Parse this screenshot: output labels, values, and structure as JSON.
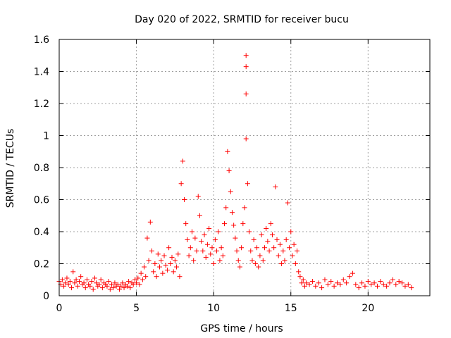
{
  "chart_data": {
    "type": "scatter",
    "title": "Day 020 of 2022, SRMTID for receiver bucu",
    "xlabel": "GPS time / hours",
    "ylabel": "SRMTID / TECUs",
    "xlim": [
      0,
      24
    ],
    "ylim": [
      0,
      1.6
    ],
    "xticks": [
      0,
      5,
      10,
      15,
      20
    ],
    "xtick_labels": [
      "0",
      "5",
      "10",
      "15",
      "20"
    ],
    "yticks": [
      0,
      0.2,
      0.4,
      0.6,
      0.8,
      1,
      1.2,
      1.4,
      1.6
    ],
    "ytick_labels": [
      "0",
      "0.2",
      "0.4",
      "0.6",
      "0.8",
      "1",
      "1.2",
      "1.4",
      "1.6"
    ],
    "grid": true,
    "marker": "+",
    "color": "#ff0000",
    "series": [
      {
        "name": "SRMTID",
        "points": [
          [
            0.0,
            0.09
          ],
          [
            0.1,
            0.07
          ],
          [
            0.2,
            0.1
          ],
          [
            0.3,
            0.06
          ],
          [
            0.4,
            0.08
          ],
          [
            0.5,
            0.11
          ],
          [
            0.6,
            0.07
          ],
          [
            0.7,
            0.09
          ],
          [
            0.8,
            0.05
          ],
          [
            0.9,
            0.15
          ],
          [
            1.0,
            0.08
          ],
          [
            1.1,
            0.1
          ],
          [
            1.2,
            0.06
          ],
          [
            1.3,
            0.09
          ],
          [
            1.4,
            0.12
          ],
          [
            1.5,
            0.07
          ],
          [
            1.6,
            0.08
          ],
          [
            1.7,
            0.05
          ],
          [
            1.8,
            0.1
          ],
          [
            1.9,
            0.07
          ],
          [
            2.0,
            0.06
          ],
          [
            2.1,
            0.09
          ],
          [
            2.2,
            0.04
          ],
          [
            2.3,
            0.11
          ],
          [
            2.4,
            0.08
          ],
          [
            2.5,
            0.06
          ],
          [
            2.6,
            0.07
          ],
          [
            2.7,
            0.1
          ],
          [
            2.8,
            0.05
          ],
          [
            2.9,
            0.08
          ],
          [
            3.0,
            0.07
          ],
          [
            3.1,
            0.06
          ],
          [
            3.2,
            0.09
          ],
          [
            3.3,
            0.04
          ],
          [
            3.4,
            0.07
          ],
          [
            3.5,
            0.05
          ],
          [
            3.6,
            0.08
          ],
          [
            3.7,
            0.06
          ],
          [
            3.8,
            0.07
          ],
          [
            3.9,
            0.04
          ],
          [
            4.0,
            0.06
          ],
          [
            4.1,
            0.08
          ],
          [
            4.2,
            0.05
          ],
          [
            4.3,
            0.07
          ],
          [
            4.4,
            0.06
          ],
          [
            4.5,
            0.09
          ],
          [
            4.6,
            0.05
          ],
          [
            4.7,
            0.08
          ],
          [
            4.8,
            0.07
          ],
          [
            4.9,
            0.1
          ],
          [
            5.0,
            0.08
          ],
          [
            5.1,
            0.11
          ],
          [
            5.2,
            0.07
          ],
          [
            5.3,
            0.14
          ],
          [
            5.4,
            0.1
          ],
          [
            5.5,
            0.18
          ],
          [
            5.6,
            0.12
          ],
          [
            5.7,
            0.36
          ],
          [
            5.8,
            0.22
          ],
          [
            5.9,
            0.46
          ],
          [
            6.0,
            0.28
          ],
          [
            6.1,
            0.15
          ],
          [
            6.2,
            0.2
          ],
          [
            6.3,
            0.12
          ],
          [
            6.4,
            0.26
          ],
          [
            6.5,
            0.18
          ],
          [
            6.6,
            0.22
          ],
          [
            6.7,
            0.14
          ],
          [
            6.8,
            0.25
          ],
          [
            6.9,
            0.19
          ],
          [
            7.0,
            0.16
          ],
          [
            7.1,
            0.3
          ],
          [
            7.2,
            0.2
          ],
          [
            7.3,
            0.24
          ],
          [
            7.4,
            0.15
          ],
          [
            7.5,
            0.22
          ],
          [
            7.6,
            0.18
          ],
          [
            7.7,
            0.26
          ],
          [
            7.8,
            0.12
          ],
          [
            7.9,
            0.7
          ],
          [
            8.0,
            0.84
          ],
          [
            8.1,
            0.6
          ],
          [
            8.2,
            0.45
          ],
          [
            8.3,
            0.35
          ],
          [
            8.4,
            0.25
          ],
          [
            8.5,
            0.3
          ],
          [
            8.6,
            0.4
          ],
          [
            8.7,
            0.22
          ],
          [
            8.8,
            0.36
          ],
          [
            8.9,
            0.28
          ],
          [
            9.0,
            0.62
          ],
          [
            9.1,
            0.5
          ],
          [
            9.2,
            0.34
          ],
          [
            9.3,
            0.28
          ],
          [
            9.4,
            0.38
          ],
          [
            9.5,
            0.24
          ],
          [
            9.6,
            0.32
          ],
          [
            9.7,
            0.42
          ],
          [
            9.8,
            0.26
          ],
          [
            9.9,
            0.3
          ],
          [
            10.0,
            0.2
          ],
          [
            10.1,
            0.35
          ],
          [
            10.2,
            0.28
          ],
          [
            10.3,
            0.4
          ],
          [
            10.4,
            0.22
          ],
          [
            10.5,
            0.3
          ],
          [
            10.6,
            0.25
          ],
          [
            10.7,
            0.45
          ],
          [
            10.8,
            0.55
          ],
          [
            10.9,
            0.9
          ],
          [
            11.0,
            0.78
          ],
          [
            11.1,
            0.65
          ],
          [
            11.2,
            0.52
          ],
          [
            11.3,
            0.44
          ],
          [
            11.4,
            0.36
          ],
          [
            11.5,
            0.28
          ],
          [
            11.6,
            0.22
          ],
          [
            11.7,
            0.18
          ],
          [
            11.8,
            0.3
          ],
          [
            11.9,
            0.45
          ],
          [
            12.0,
            0.55
          ],
          [
            12.1,
            1.5
          ],
          [
            12.1,
            1.43
          ],
          [
            12.1,
            1.26
          ],
          [
            12.1,
            0.98
          ],
          [
            12.2,
            0.7
          ],
          [
            12.3,
            0.4
          ],
          [
            12.4,
            0.28
          ],
          [
            12.5,
            0.22
          ],
          [
            12.6,
            0.35
          ],
          [
            12.7,
            0.2
          ],
          [
            12.8,
            0.3
          ],
          [
            12.9,
            0.18
          ],
          [
            13.0,
            0.25
          ],
          [
            13.1,
            0.38
          ],
          [
            13.2,
            0.22
          ],
          [
            13.3,
            0.3
          ],
          [
            13.4,
            0.42
          ],
          [
            13.5,
            0.34
          ],
          [
            13.6,
            0.28
          ],
          [
            13.7,
            0.45
          ],
          [
            13.8,
            0.38
          ],
          [
            13.9,
            0.3
          ],
          [
            14.0,
            0.68
          ],
          [
            14.1,
            0.35
          ],
          [
            14.2,
            0.25
          ],
          [
            14.3,
            0.32
          ],
          [
            14.4,
            0.2
          ],
          [
            14.5,
            0.28
          ],
          [
            14.6,
            0.22
          ],
          [
            14.7,
            0.35
          ],
          [
            14.8,
            0.58
          ],
          [
            14.9,
            0.3
          ],
          [
            15.0,
            0.4
          ],
          [
            15.1,
            0.25
          ],
          [
            15.2,
            0.32
          ],
          [
            15.3,
            0.2
          ],
          [
            15.4,
            0.28
          ],
          [
            15.5,
            0.15
          ],
          [
            15.6,
            0.12
          ],
          [
            15.7,
            0.08
          ],
          [
            15.8,
            0.1
          ],
          [
            15.9,
            0.06
          ],
          [
            16.0,
            0.08
          ],
          [
            16.2,
            0.07
          ],
          [
            16.4,
            0.09
          ],
          [
            16.6,
            0.06
          ],
          [
            16.8,
            0.08
          ],
          [
            17.0,
            0.05
          ],
          [
            17.2,
            0.1
          ],
          [
            17.4,
            0.07
          ],
          [
            17.6,
            0.09
          ],
          [
            17.8,
            0.06
          ],
          [
            18.0,
            0.08
          ],
          [
            18.2,
            0.07
          ],
          [
            18.4,
            0.1
          ],
          [
            18.6,
            0.08
          ],
          [
            18.8,
            0.12
          ],
          [
            19.0,
            0.14
          ],
          [
            19.2,
            0.07
          ],
          [
            19.4,
            0.05
          ],
          [
            19.6,
            0.08
          ],
          [
            19.8,
            0.06
          ],
          [
            20.0,
            0.09
          ],
          [
            20.2,
            0.07
          ],
          [
            20.4,
            0.08
          ],
          [
            20.6,
            0.06
          ],
          [
            20.8,
            0.09
          ],
          [
            21.0,
            0.07
          ],
          [
            21.2,
            0.06
          ],
          [
            21.4,
            0.08
          ],
          [
            21.6,
            0.1
          ],
          [
            21.8,
            0.07
          ],
          [
            22.0,
            0.09
          ],
          [
            22.2,
            0.08
          ],
          [
            22.4,
            0.06
          ],
          [
            22.6,
            0.07
          ],
          [
            22.8,
            0.05
          ]
        ]
      }
    ]
  }
}
